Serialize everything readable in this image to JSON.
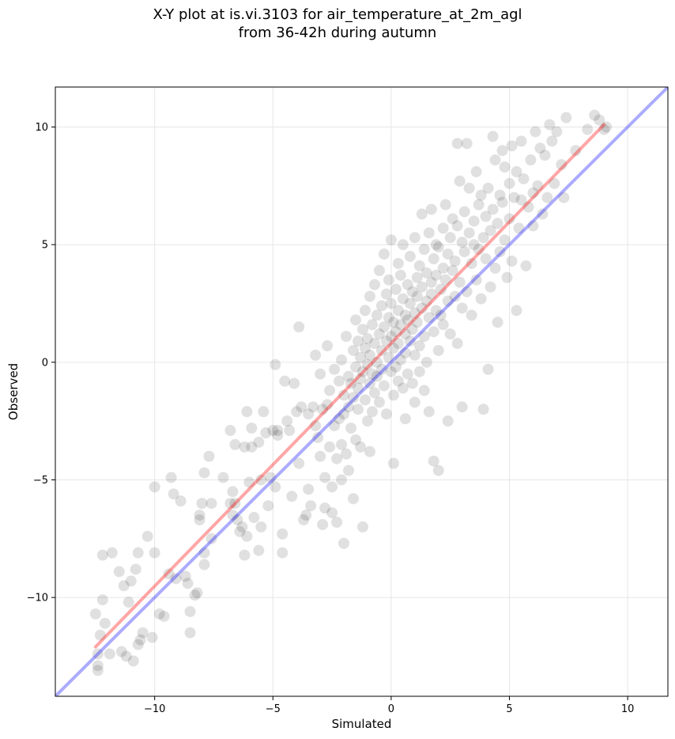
{
  "chart_data": {
    "type": "scatter",
    "title_line1": "X-Y plot at is.vi.3103 for air_temperature_at_2m_agl",
    "title_line2": "from 36-42h during autumn",
    "xlabel": "Simulated",
    "ylabel": "Observed",
    "xlim": [
      -14.2,
      11.7
    ],
    "ylim": [
      -14.2,
      11.7
    ],
    "xticks": [
      -10,
      -5,
      0,
      5,
      10
    ],
    "yticks": [
      -10,
      -5,
      0,
      5,
      10
    ],
    "xtick_labels": [
      "−10",
      "−5",
      "0",
      "5",
      "10"
    ],
    "ytick_labels": [
      "−10",
      "−5",
      "0",
      "5",
      "10"
    ],
    "grid": true,
    "points_color": "#000000",
    "points_alpha": 0.12,
    "fit_line": {
      "color": "#ff0000",
      "alpha": 0.35,
      "x": [
        -12.5,
        9.0
      ],
      "y": [
        -12.1,
        10.1
      ]
    },
    "identity_line": {
      "color": "#0000ff",
      "alpha": 0.33,
      "x": [
        -14.2,
        11.7
      ],
      "y": [
        -14.2,
        11.7
      ]
    },
    "points": [
      [
        -12.4,
        -13.1
      ],
      [
        -12.4,
        -12.9
      ],
      [
        -12.4,
        -12.4
      ],
      [
        -12.5,
        -10.7
      ],
      [
        -12.3,
        -11.6
      ],
      [
        -12.2,
        -10.1
      ],
      [
        -12.1,
        -11.1
      ],
      [
        -12.2,
        -8.2
      ],
      [
        -11.8,
        -8.1
      ],
      [
        -11.9,
        -12.4
      ],
      [
        -11.5,
        -8.9
      ],
      [
        -11.4,
        -12.3
      ],
      [
        -11.2,
        -12.5
      ],
      [
        -11.3,
        -9.5
      ],
      [
        -11.1,
        -10.2
      ],
      [
        -11.0,
        -9.3
      ],
      [
        -10.9,
        -12.7
      ],
      [
        -10.8,
        -8.8
      ],
      [
        -10.7,
        -8.1
      ],
      [
        -10.7,
        -12.0
      ],
      [
        -10.6,
        -11.8
      ],
      [
        -10.5,
        -11.5
      ],
      [
        -10.3,
        -7.4
      ],
      [
        -10.1,
        -11.7
      ],
      [
        -10.0,
        -8.1
      ],
      [
        -10.0,
        -5.3
      ],
      [
        -9.8,
        -10.7
      ],
      [
        -9.6,
        -10.8
      ],
      [
        -9.4,
        -9.0
      ],
      [
        -9.3,
        -4.9
      ],
      [
        -9.2,
        -5.6
      ],
      [
        -9.1,
        -9.2
      ],
      [
        -8.9,
        -5.9
      ],
      [
        -8.7,
        -9.1
      ],
      [
        -8.6,
        -9.4
      ],
      [
        -8.5,
        -10.6
      ],
      [
        -8.5,
        -11.5
      ],
      [
        -8.3,
        -9.9
      ],
      [
        -8.2,
        -9.8
      ],
      [
        -8.1,
        -6.7
      ],
      [
        -8.1,
        -6.5
      ],
      [
        -8.0,
        -6.0
      ],
      [
        -7.9,
        -8.6
      ],
      [
        -7.9,
        -8.1
      ],
      [
        -7.9,
        -4.7
      ],
      [
        -7.7,
        -4.0
      ],
      [
        -7.6,
        -6.0
      ],
      [
        -7.6,
        -7.5
      ],
      [
        -7.1,
        -4.9
      ],
      [
        -6.8,
        -6.0
      ],
      [
        -6.8,
        -2.9
      ],
      [
        -6.7,
        -5.5
      ],
      [
        -6.7,
        -6.5
      ],
      [
        -6.6,
        -3.5
      ],
      [
        -6.6,
        -6.0
      ],
      [
        -6.5,
        -6.7
      ],
      [
        -6.4,
        -7.2
      ],
      [
        -6.3,
        -7.0
      ],
      [
        -6.2,
        -3.6
      ],
      [
        -6.2,
        -8.2
      ],
      [
        -6.1,
        -7.4
      ],
      [
        -6.1,
        -2.1
      ],
      [
        -6.0,
        -5.1
      ],
      [
        -5.9,
        -2.8
      ],
      [
        -5.9,
        -3.6
      ],
      [
        -5.8,
        -6.6
      ],
      [
        -5.6,
        -8.0
      ],
      [
        -5.6,
        -3.4
      ],
      [
        -5.5,
        -7.0
      ],
      [
        -5.5,
        -5.0
      ],
      [
        -5.4,
        -2.1
      ],
      [
        -5.3,
        -3.0
      ],
      [
        -5.2,
        -6.1
      ],
      [
        -5.1,
        -4.9
      ],
      [
        -5.0,
        -2.9
      ],
      [
        -4.9,
        -5.3
      ],
      [
        -4.9,
        -0.1
      ],
      [
        -4.8,
        -2.9
      ],
      [
        -4.8,
        -3.1
      ],
      [
        -4.6,
        -7.3
      ],
      [
        -4.6,
        -8.1
      ],
      [
        -4.5,
        -0.8
      ],
      [
        -4.4,
        -2.5
      ],
      [
        -4.3,
        -2.9
      ],
      [
        -4.2,
        -5.7
      ],
      [
        -4.1,
        -0.9
      ],
      [
        -4.0,
        -2.1
      ],
      [
        -3.9,
        -4.3
      ],
      [
        -3.9,
        1.5
      ],
      [
        -3.8,
        -1.9
      ],
      [
        -3.7,
        -6.7
      ],
      [
        -3.6,
        -6.5
      ],
      [
        -3.5,
        -5.4
      ],
      [
        -3.5,
        -2.2
      ],
      [
        -3.4,
        -6.1
      ],
      [
        -3.3,
        -1.9
      ],
      [
        -3.2,
        -2.7
      ],
      [
        -3.2,
        0.3
      ],
      [
        -3.1,
        -3.2
      ],
      [
        -3.0,
        -0.5
      ],
      [
        -3.0,
        -4.0
      ],
      [
        -2.9,
        -2.0
      ],
      [
        -2.9,
        -6.9
      ],
      [
        -2.8,
        -6.2
      ],
      [
        -2.8,
        -4.9
      ],
      [
        -2.7,
        -1.8
      ],
      [
        -2.7,
        0.7
      ],
      [
        -2.6,
        -3.6
      ],
      [
        -2.6,
        -1.2
      ],
      [
        -2.5,
        -6.4
      ],
      [
        -2.5,
        -5.3
      ],
      [
        -2.4,
        -2.7
      ],
      [
        -2.4,
        -0.3
      ],
      [
        -2.3,
        -4.1
      ],
      [
        -2.3,
        -6.8
      ],
      [
        -2.2,
        -2.4
      ],
      [
        -2.2,
        -0.8
      ],
      [
        -2.1,
        -3.5
      ],
      [
        -2.1,
        0.1
      ],
      [
        -2.1,
        -5.0
      ],
      [
        -2.0,
        -1.4
      ],
      [
        -2.0,
        -2.2
      ],
      [
        -2.0,
        -7.7
      ],
      [
        -1.9,
        -3.9
      ],
      [
        -1.9,
        1.1
      ],
      [
        -1.8,
        -0.6
      ],
      [
        -1.8,
        -1.9
      ],
      [
        -1.8,
        -4.6
      ],
      [
        -1.7,
        -0.9
      ],
      [
        -1.7,
        -2.8
      ],
      [
        -1.6,
        0.5
      ],
      [
        -1.6,
        -1.5
      ],
      [
        -1.6,
        -5.8
      ],
      [
        -1.5,
        -0.2
      ],
      [
        -1.5,
        -3.3
      ],
      [
        -1.5,
        1.8
      ],
      [
        -1.4,
        0.9
      ],
      [
        -1.4,
        -1.1
      ],
      [
        -1.4,
        -2.0
      ],
      [
        -1.3,
        0.2
      ],
      [
        -1.3,
        -0.7
      ],
      [
        -1.3,
        -3.6
      ],
      [
        -1.2,
        1.4
      ],
      [
        -1.2,
        -0.4
      ],
      [
        -1.2,
        -7.0
      ],
      [
        -1.1,
        2.2
      ],
      [
        -1.1,
        0.6
      ],
      [
        -1.1,
        -1.6
      ],
      [
        -1.0,
        -0.1
      ],
      [
        -1.0,
        1.0
      ],
      [
        -1.0,
        -2.5
      ],
      [
        -0.9,
        2.8
      ],
      [
        -0.9,
        0.3
      ],
      [
        -0.9,
        -0.9
      ],
      [
        -0.9,
        -3.8
      ],
      [
        -0.8,
        1.6
      ],
      [
        -0.8,
        -0.5
      ],
      [
        -0.8,
        -2.1
      ],
      [
        -0.7,
        0.8
      ],
      [
        -0.7,
        3.3
      ],
      [
        -0.7,
        -1.3
      ],
      [
        -0.6,
        2.0
      ],
      [
        -0.6,
        0.0
      ],
      [
        -0.6,
        -0.6
      ],
      [
        -0.5,
        1.2
      ],
      [
        -0.5,
        3.9
      ],
      [
        -0.5,
        -1.7
      ],
      [
        -0.4,
        2.4
      ],
      [
        -0.4,
        0.5
      ],
      [
        -0.4,
        -0.3
      ],
      [
        -0.3,
        1.5
      ],
      [
        -0.3,
        -1.0
      ],
      [
        -0.3,
        4.6
      ],
      [
        -0.2,
        2.9
      ],
      [
        -0.2,
        0.9
      ],
      [
        -0.2,
        -2.2
      ],
      [
        -0.1,
        1.9
      ],
      [
        -0.1,
        0.2
      ],
      [
        -0.1,
        3.5
      ],
      [
        0.0,
        1.1
      ],
      [
        0.0,
        -0.4
      ],
      [
        0.0,
        2.5
      ],
      [
        0.0,
        5.2
      ],
      [
        0.1,
        0.6
      ],
      [
        0.1,
        1.7
      ],
      [
        0.1,
        -1.4
      ],
      [
        0.1,
        -4.3
      ],
      [
        0.2,
        3.1
      ],
      [
        0.2,
        1.3
      ],
      [
        0.2,
        -0.2
      ],
      [
        0.3,
        4.2
      ],
      [
        0.3,
        0.8
      ],
      [
        0.3,
        2.2
      ],
      [
        0.3,
        -0.8
      ],
      [
        0.4,
        1.6
      ],
      [
        0.4,
        3.7
      ],
      [
        0.4,
        0.1
      ],
      [
        0.5,
        2.7
      ],
      [
        0.5,
        -1.1
      ],
      [
        0.5,
        5.0
      ],
      [
        0.6,
        1.2
      ],
      [
        0.6,
        2.0
      ],
      [
        0.6,
        0.4
      ],
      [
        0.6,
        -2.4
      ],
      [
        0.7,
        3.3
      ],
      [
        0.7,
        1.8
      ],
      [
        0.7,
        -0.5
      ],
      [
        0.8,
        2.5
      ],
      [
        0.8,
        4.5
      ],
      [
        0.8,
        0.9
      ],
      [
        0.9,
        1.4
      ],
      [
        0.9,
        3.0
      ],
      [
        0.9,
        -0.9
      ],
      [
        1.0,
        2.1
      ],
      [
        1.0,
        5.3
      ],
      [
        1.0,
        0.3
      ],
      [
        1.0,
        -1.7
      ],
      [
        1.1,
        3.6
      ],
      [
        1.1,
        1.7
      ],
      [
        1.1,
        2.8
      ],
      [
        1.2,
        4.1
      ],
      [
        1.2,
        0.7
      ],
      [
        1.2,
        -0.4
      ],
      [
        1.3,
        2.3
      ],
      [
        1.3,
        3.2
      ],
      [
        1.3,
        6.3
      ],
      [
        1.4,
        1.1
      ],
      [
        1.4,
        4.8
      ],
      [
        1.4,
        -1.2
      ],
      [
        1.5,
        2.6
      ],
      [
        1.5,
        3.8
      ],
      [
        1.5,
        0.0
      ],
      [
        1.6,
        5.5
      ],
      [
        1.6,
        1.9
      ],
      [
        1.6,
        -2.1
      ],
      [
        1.7,
        3.4
      ],
      [
        1.7,
        2.9
      ],
      [
        1.7,
        6.5
      ],
      [
        1.8,
        4.4
      ],
      [
        1.8,
        1.3
      ],
      [
        1.8,
        -4.2
      ],
      [
        1.9,
        2.2
      ],
      [
        1.9,
        3.7
      ],
      [
        1.9,
        5.0
      ],
      [
        2.0,
        0.5
      ],
      [
        2.0,
        4.9
      ],
      [
        2.0,
        -4.6
      ],
      [
        2.1,
        3.1
      ],
      [
        2.1,
        2.0
      ],
      [
        2.2,
        5.7
      ],
      [
        2.2,
        4.0
      ],
      [
        2.2,
        1.6
      ],
      [
        2.3,
        6.7
      ],
      [
        2.3,
        3.5
      ],
      [
        2.4,
        2.6
      ],
      [
        2.4,
        4.6
      ],
      [
        2.4,
        -2.5
      ],
      [
        2.5,
        5.3
      ],
      [
        2.5,
        1.2
      ],
      [
        2.6,
        3.9
      ],
      [
        2.6,
        6.1
      ],
      [
        2.7,
        4.3
      ],
      [
        2.7,
        2.8
      ],
      [
        2.8,
        5.8
      ],
      [
        2.8,
        9.3
      ],
      [
        2.8,
        0.8
      ],
      [
        2.9,
        3.4
      ],
      [
        2.9,
        7.7
      ],
      [
        3.0,
        5.1
      ],
      [
        3.0,
        2.3
      ],
      [
        3.0,
        -1.9
      ],
      [
        3.1,
        6.4
      ],
      [
        3.1,
        4.7
      ],
      [
        3.2,
        3.0
      ],
      [
        3.2,
        9.3
      ],
      [
        3.3,
        5.5
      ],
      [
        3.3,
        7.4
      ],
      [
        3.4,
        4.2
      ],
      [
        3.4,
        2.0
      ],
      [
        3.5,
        6.0
      ],
      [
        3.5,
        5.0
      ],
      [
        3.6,
        3.5
      ],
      [
        3.6,
        8.1
      ],
      [
        3.7,
        6.7
      ],
      [
        3.7,
        4.8
      ],
      [
        3.8,
        7.1
      ],
      [
        3.8,
        2.7
      ],
      [
        3.9,
        5.3
      ],
      [
        3.9,
        -2.0
      ],
      [
        4.0,
        6.2
      ],
      [
        4.0,
        4.4
      ],
      [
        4.1,
        7.4
      ],
      [
        4.1,
        -0.3
      ],
      [
        4.2,
        5.6
      ],
      [
        4.2,
        3.2
      ],
      [
        4.3,
        9.6
      ],
      [
        4.3,
        6.5
      ],
      [
        4.4,
        4.0
      ],
      [
        4.4,
        8.6
      ],
      [
        4.5,
        5.9
      ],
      [
        4.5,
        1.7
      ],
      [
        4.6,
        7.1
      ],
      [
        4.6,
        4.7
      ],
      [
        4.7,
        9.0
      ],
      [
        4.7,
        6.8
      ],
      [
        4.8,
        5.2
      ],
      [
        4.8,
        8.3
      ],
      [
        4.9,
        3.6
      ],
      [
        5.0,
        7.6
      ],
      [
        5.0,
        6.1
      ],
      [
        5.1,
        9.2
      ],
      [
        5.1,
        4.3
      ],
      [
        5.2,
        7.0
      ],
      [
        5.3,
        2.2
      ],
      [
        5.3,
        8.1
      ],
      [
        5.4,
        5.7
      ],
      [
        5.5,
        9.4
      ],
      [
        5.5,
        6.9
      ],
      [
        5.6,
        7.8
      ],
      [
        5.7,
        4.1
      ],
      [
        5.8,
        6.6
      ],
      [
        5.9,
        8.6
      ],
      [
        6.0,
        7.2
      ],
      [
        6.0,
        5.8
      ],
      [
        6.1,
        9.8
      ],
      [
        6.2,
        7.5
      ],
      [
        6.3,
        9.1
      ],
      [
        6.4,
        6.3
      ],
      [
        6.5,
        8.8
      ],
      [
        6.6,
        7.0
      ],
      [
        6.7,
        10.1
      ],
      [
        6.8,
        9.4
      ],
      [
        6.9,
        7.6
      ],
      [
        7.0,
        9.8
      ],
      [
        7.2,
        8.4
      ],
      [
        7.3,
        7.0
      ],
      [
        7.4,
        10.4
      ],
      [
        7.8,
        9.0
      ],
      [
        8.3,
        9.9
      ],
      [
        8.6,
        10.5
      ],
      [
        8.8,
        10.3
      ],
      [
        9.0,
        9.9
      ],
      [
        9.1,
        10.0
      ]
    ]
  }
}
